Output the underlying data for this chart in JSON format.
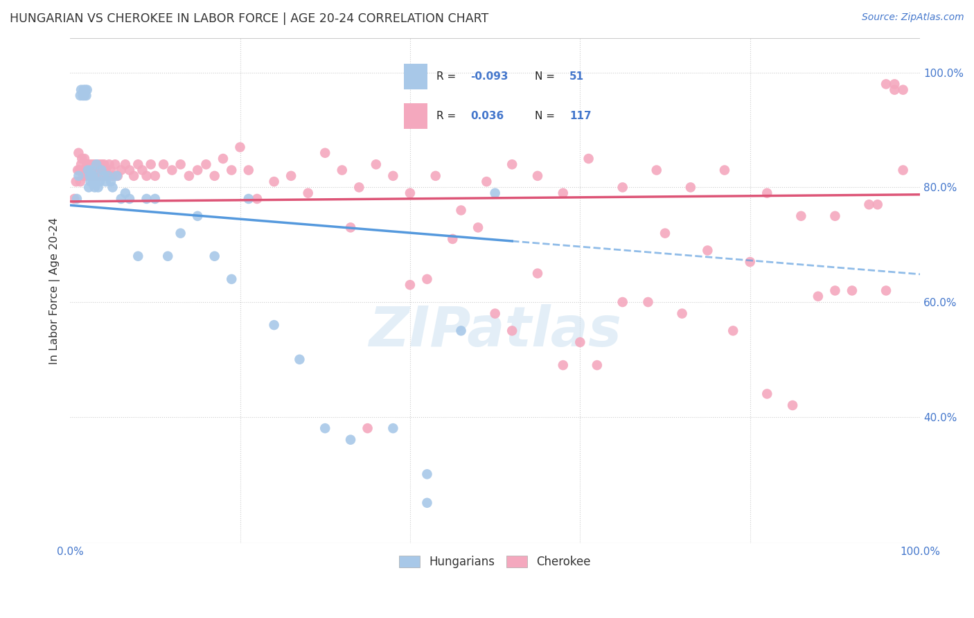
{
  "title": "HUNGARIAN VS CHEROKEE IN LABOR FORCE | AGE 20-24 CORRELATION CHART",
  "source": "Source: ZipAtlas.com",
  "ylabel": "In Labor Force | Age 20-24",
  "xlim": [
    0.0,
    1.0
  ],
  "ylim": [
    0.18,
    1.06
  ],
  "right_yticks": [
    0.4,
    0.6,
    0.8,
    1.0
  ],
  "right_yticklabels": [
    "40.0%",
    "60.0%",
    "80.0%",
    "100.0%"
  ],
  "hungarian_R": -0.093,
  "hungarian_N": 51,
  "cherokee_R": 0.036,
  "cherokee_N": 117,
  "hungarian_color": "#a8c8e8",
  "cherokee_color": "#f4a8be",
  "trend_hungarian_color": "#5599dd",
  "trend_cherokee_color": "#dd5577",
  "watermark": "ZIPatlas",
  "legend_R_N_color": "#4477cc",
  "legend_label_color": "#222222",
  "hungarian_x": [
    0.008,
    0.01,
    0.012,
    0.013,
    0.015,
    0.016,
    0.017,
    0.018,
    0.019,
    0.02,
    0.021,
    0.022,
    0.023,
    0.024,
    0.025,
    0.026,
    0.027,
    0.028,
    0.029,
    0.03,
    0.031,
    0.033,
    0.035,
    0.037,
    0.04,
    0.042,
    0.045,
    0.048,
    0.05,
    0.055,
    0.06,
    0.065,
    0.07,
    0.08,
    0.09,
    0.1,
    0.115,
    0.13,
    0.15,
    0.17,
    0.19,
    0.21,
    0.24,
    0.27,
    0.3,
    0.33,
    0.38,
    0.42,
    0.46,
    0.5,
    0.42
  ],
  "hungarian_y": [
    0.78,
    0.82,
    0.96,
    0.97,
    0.96,
    0.97,
    0.96,
    0.97,
    0.96,
    0.97,
    0.83,
    0.8,
    0.82,
    0.81,
    0.83,
    0.82,
    0.81,
    0.82,
    0.8,
    0.81,
    0.84,
    0.8,
    0.81,
    0.83,
    0.82,
    0.81,
    0.82,
    0.81,
    0.8,
    0.82,
    0.78,
    0.79,
    0.78,
    0.68,
    0.78,
    0.78,
    0.68,
    0.72,
    0.75,
    0.68,
    0.64,
    0.78,
    0.56,
    0.5,
    0.38,
    0.36,
    0.38,
    0.3,
    0.55,
    0.79,
    0.25
  ],
  "cherokee_x": [
    0.005,
    0.007,
    0.009,
    0.01,
    0.011,
    0.012,
    0.013,
    0.014,
    0.015,
    0.016,
    0.017,
    0.018,
    0.019,
    0.02,
    0.021,
    0.022,
    0.023,
    0.024,
    0.025,
    0.026,
    0.027,
    0.028,
    0.029,
    0.03,
    0.031,
    0.032,
    0.033,
    0.034,
    0.035,
    0.036,
    0.037,
    0.038,
    0.039,
    0.04,
    0.042,
    0.044,
    0.046,
    0.048,
    0.05,
    0.053,
    0.056,
    0.06,
    0.065,
    0.07,
    0.075,
    0.08,
    0.085,
    0.09,
    0.095,
    0.1,
    0.11,
    0.12,
    0.13,
    0.14,
    0.15,
    0.16,
    0.17,
    0.18,
    0.19,
    0.2,
    0.21,
    0.22,
    0.24,
    0.26,
    0.28,
    0.3,
    0.32,
    0.34,
    0.36,
    0.38,
    0.4,
    0.43,
    0.46,
    0.49,
    0.52,
    0.55,
    0.58,
    0.61,
    0.65,
    0.69,
    0.73,
    0.77,
    0.82,
    0.86,
    0.9,
    0.94,
    0.98,
    0.4,
    0.5,
    0.6,
    0.7,
    0.8,
    0.9,
    0.35,
    0.45,
    0.55,
    0.65,
    0.75,
    0.85,
    0.95,
    0.42,
    0.52,
    0.62,
    0.72,
    0.82,
    0.92,
    0.48,
    0.58,
    0.68,
    0.78,
    0.88,
    0.96,
    0.96,
    0.98,
    0.33,
    0.97,
    0.97
  ],
  "cherokee_y": [
    0.78,
    0.81,
    0.83,
    0.86,
    0.83,
    0.81,
    0.84,
    0.85,
    0.82,
    0.83,
    0.85,
    0.83,
    0.82,
    0.84,
    0.83,
    0.84,
    0.83,
    0.82,
    0.84,
    0.83,
    0.82,
    0.84,
    0.83,
    0.82,
    0.84,
    0.83,
    0.82,
    0.84,
    0.82,
    0.83,
    0.84,
    0.83,
    0.82,
    0.84,
    0.83,
    0.82,
    0.84,
    0.83,
    0.82,
    0.84,
    0.82,
    0.83,
    0.84,
    0.83,
    0.82,
    0.84,
    0.83,
    0.82,
    0.84,
    0.82,
    0.84,
    0.83,
    0.84,
    0.82,
    0.83,
    0.84,
    0.82,
    0.85,
    0.83,
    0.87,
    0.83,
    0.78,
    0.81,
    0.82,
    0.79,
    0.86,
    0.83,
    0.8,
    0.84,
    0.82,
    0.79,
    0.82,
    0.76,
    0.81,
    0.84,
    0.82,
    0.79,
    0.85,
    0.8,
    0.83,
    0.8,
    0.83,
    0.79,
    0.75,
    0.75,
    0.77,
    0.83,
    0.63,
    0.58,
    0.53,
    0.72,
    0.67,
    0.62,
    0.38,
    0.71,
    0.65,
    0.6,
    0.69,
    0.42,
    0.77,
    0.64,
    0.55,
    0.49,
    0.58,
    0.44,
    0.62,
    0.73,
    0.49,
    0.6,
    0.55,
    0.61,
    0.62,
    0.98,
    0.97,
    0.73,
    0.98,
    0.97
  ]
}
